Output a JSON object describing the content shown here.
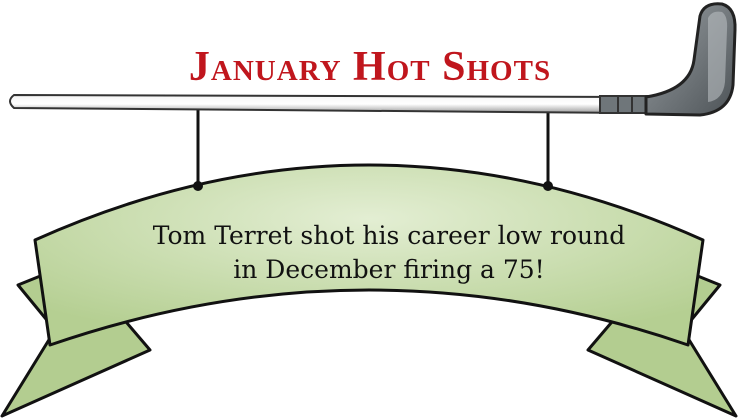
{
  "title": "January Hot Shots",
  "body": [
    "Tom Terret shot his career low round",
    "in December firing a 75!"
  ]
}
